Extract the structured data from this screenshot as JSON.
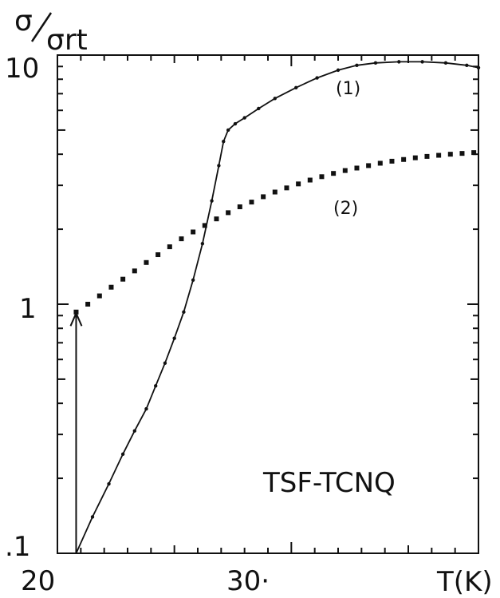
{
  "chart_data": {
    "type": "scatter",
    "yscale": "log",
    "xlim": [
      20,
      38
    ],
    "ylim": [
      0.1,
      10
    ],
    "ylabel": "σ/σrt",
    "xlabel": "T(K)",
    "x_ticks": [
      "20",
      "30·"
    ],
    "y_ticks": [
      "10",
      "1",
      ".1"
    ],
    "annotation": "TSF-TCNQ",
    "series": [
      {
        "name": "(1)",
        "line": true,
        "color": "#111111",
        "x": [
          20.8,
          21.5,
          22.2,
          22.8,
          23.3,
          23.8,
          24.2,
          24.6,
          25.0,
          25.4,
          25.8,
          26.2,
          26.6,
          26.9,
          27.1,
          27.3,
          27.6,
          28.0,
          28.6,
          29.3,
          30.2,
          31.1,
          32.0,
          32.8,
          33.6,
          34.6,
          35.6,
          36.6,
          37.5,
          38.0
        ],
        "y": [
          0.1,
          0.14,
          0.19,
          0.25,
          0.31,
          0.38,
          0.47,
          0.58,
          0.73,
          0.93,
          1.25,
          1.75,
          2.6,
          3.6,
          4.5,
          5.0,
          5.3,
          5.6,
          6.1,
          6.7,
          7.4,
          8.1,
          8.7,
          9.1,
          9.3,
          9.4,
          9.4,
          9.3,
          9.1,
          8.9
        ]
      },
      {
        "name": "(2)",
        "line": false,
        "color": "#111111",
        "x": [
          20.8,
          21.3,
          21.8,
          22.3,
          22.8,
          23.3,
          23.8,
          24.3,
          24.8,
          25.3,
          25.8,
          26.3,
          26.8,
          27.3,
          27.8,
          28.3,
          28.8,
          29.3,
          29.8,
          30.3,
          30.8,
          31.3,
          31.8,
          32.3,
          32.8,
          33.3,
          33.8,
          34.3,
          34.8,
          35.3,
          35.8,
          36.3,
          36.8,
          37.3,
          37.8
        ],
        "y": [
          0.93,
          1.0,
          1.08,
          1.17,
          1.26,
          1.36,
          1.47,
          1.58,
          1.7,
          1.83,
          1.95,
          2.07,
          2.2,
          2.33,
          2.46,
          2.57,
          2.7,
          2.82,
          2.93,
          3.04,
          3.15,
          3.25,
          3.35,
          3.44,
          3.52,
          3.6,
          3.68,
          3.75,
          3.81,
          3.87,
          3.92,
          3.96,
          4.0,
          4.03,
          4.06
        ]
      }
    ],
    "arrow": {
      "x": 20.8,
      "from_y": 0.1,
      "to_y": 0.92
    }
  }
}
